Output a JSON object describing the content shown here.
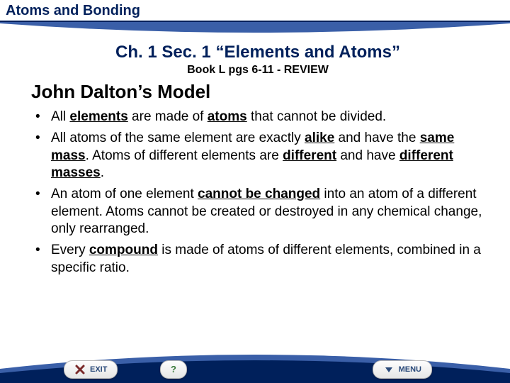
{
  "header": {
    "title": "Atoms and Bonding"
  },
  "colors": {
    "navy": "#00205b",
    "rule": "#00205b",
    "curve": "#3a5fa8",
    "white": "#ffffff"
  },
  "chapter": {
    "title": "Ch. 1 Sec. 1 “Elements and Atoms”",
    "subtitle": "Book L pgs 6-11 - REVIEW"
  },
  "section_heading": "John Dalton’s Model",
  "bullets": [
    {
      "parts": [
        {
          "t": " All ",
          "b": false,
          "u": false
        },
        {
          "t": "elements",
          "b": true,
          "u": true
        },
        {
          "t": " are made of ",
          "b": false,
          "u": false
        },
        {
          "t": "atoms",
          "b": true,
          "u": true
        },
        {
          "t": " that cannot be divided.",
          "b": false,
          "u": false
        }
      ]
    },
    {
      "parts": [
        {
          "t": " All atoms of the same element are exactly ",
          "b": false,
          "u": false
        },
        {
          "t": "alike",
          "b": true,
          "u": true
        },
        {
          "t": " and have the ",
          "b": false,
          "u": false
        },
        {
          "t": "same mass",
          "b": true,
          "u": true
        },
        {
          "t": ". Atoms of different elements are ",
          "b": false,
          "u": false
        },
        {
          "t": "different",
          "b": true,
          "u": true
        },
        {
          "t": " and have ",
          "b": false,
          "u": false
        },
        {
          "t": "different masses",
          "b": true,
          "u": true
        },
        {
          "t": ".",
          "b": false,
          "u": false
        }
      ]
    },
    {
      "parts": [
        {
          "t": " An atom of one element ",
          "b": false,
          "u": false
        },
        {
          "t": "cannot be changed",
          "b": true,
          "u": true
        },
        {
          "t": " into an atom of a different element. Atoms cannot be created or destroyed in any chemical change, only rearranged.",
          "b": false,
          "u": false
        }
      ]
    },
    {
      "parts": [
        {
          "t": " Every ",
          "b": false,
          "u": false
        },
        {
          "t": "compound",
          "b": true,
          "u": true
        },
        {
          "t": " is made of atoms of different elements, combined in a specific ratio.",
          "b": false,
          "u": false
        }
      ]
    }
  ],
  "footer": {
    "exit_label": "EXIT",
    "help_label": "?",
    "menu_label": "MENU"
  }
}
